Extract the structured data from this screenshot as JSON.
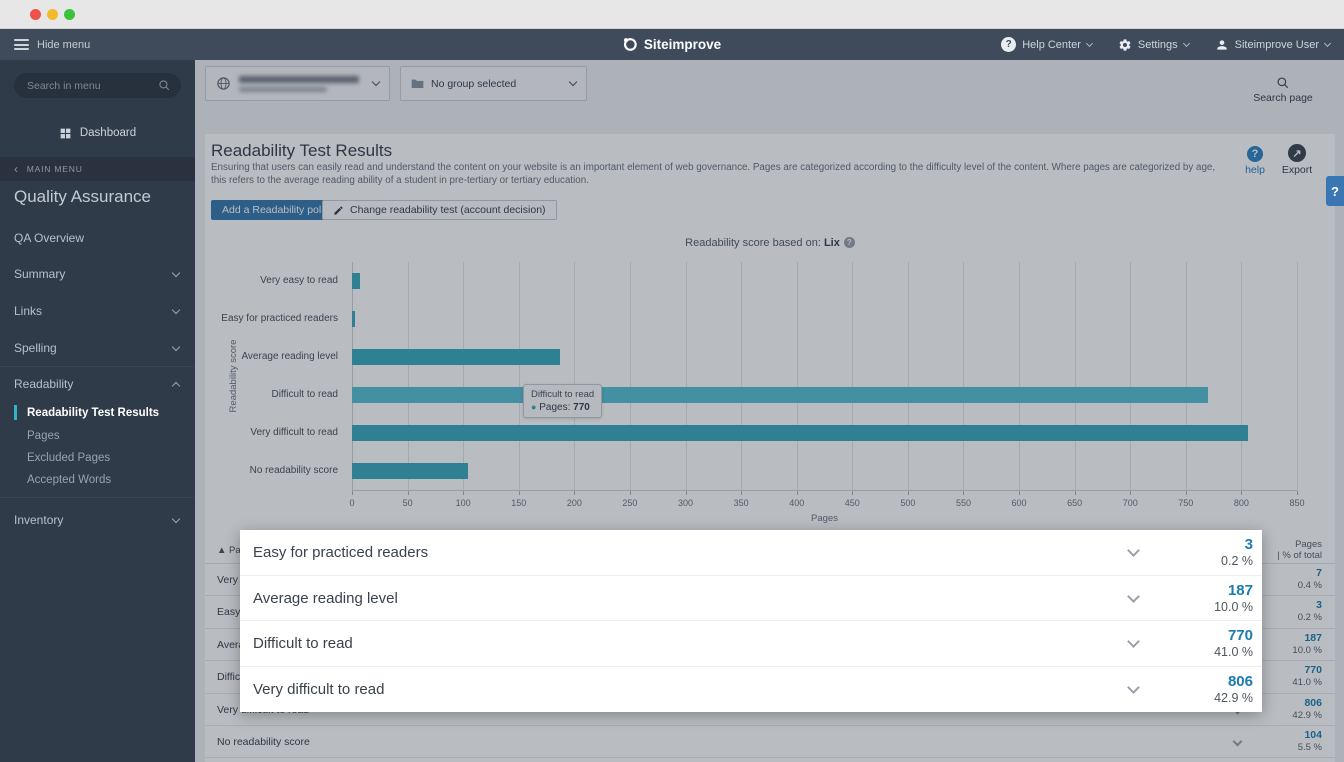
{
  "navbar": {
    "hide_menu": "Hide menu",
    "brand": "Siteimprove",
    "help_center": "Help Center",
    "settings": "Settings",
    "user": "Siteimprove User"
  },
  "sidebar": {
    "search_placeholder": "Search in menu",
    "dashboard": "Dashboard",
    "main_menu": "MAIN MENU",
    "section_title": "Quality Assurance",
    "items": [
      {
        "label": "QA Overview",
        "chevron": null
      },
      {
        "label": "Summary",
        "chevron": "down"
      },
      {
        "label": "Links",
        "chevron": "down"
      },
      {
        "label": "Spelling",
        "chevron": "down"
      },
      {
        "label": "Readability",
        "chevron": "up"
      }
    ],
    "readability_children": [
      "Readability Test Results",
      "Pages",
      "Excluded Pages",
      "Accepted Words"
    ],
    "active_child": "Readability Test Results",
    "inventory": "Inventory"
  },
  "filters": {
    "group_selector": "No group selected",
    "search_page": "Search page"
  },
  "page": {
    "title": "Readability Test Results",
    "description": "Ensuring that users can easily read and understand the content on your website is an important element of web governance. Pages are categorized according to the difficulty level of the content. Where pages are categorized by age, this refers to the average reading ability of a student in pre-tertiary or tertiary education.",
    "add_policy_button": "Add a Readability policy",
    "change_test_button": "Change readability test (account decision)",
    "help_label": "help",
    "export_label": "Export",
    "floating_help": "?"
  },
  "chart_data": {
    "type": "bar",
    "orientation": "horizontal",
    "title": "Readability score based on: Lix",
    "title_prefix": "Readability score based on:",
    "metric": "Lix",
    "categories": [
      "Very easy to read",
      "Easy for practiced readers",
      "Average reading level",
      "Difficult to read",
      "Very difficult to read",
      "No readability score"
    ],
    "values": [
      7,
      3,
      187,
      770,
      806,
      104
    ],
    "xlabel": "Pages",
    "ylabel": "Readability score",
    "xlim": [
      0,
      850
    ],
    "xticks": [
      0,
      50,
      100,
      150,
      200,
      250,
      300,
      350,
      400,
      450,
      500,
      550,
      600,
      650,
      700,
      750,
      800,
      850
    ],
    "grid": true,
    "legend": false,
    "bar_color": "#3aa9bd",
    "bar_hover_color": "#55c0d2",
    "hovered_category": "Difficult to read",
    "tooltip": {
      "title": "Difficult to read",
      "series_label": "Pages:",
      "value": "770"
    }
  },
  "table": {
    "sort_indicator": "▲",
    "header_left": "Page readability level",
    "header_right_line1": "Pages",
    "header_right_line2": "| % of total",
    "rows": [
      {
        "label": "Very easy to read",
        "pages": "7",
        "percent": "0.4 %"
      },
      {
        "label": "Easy for practiced readers",
        "pages": "3",
        "percent": "0.2 %"
      },
      {
        "label": "Average reading level",
        "pages": "187",
        "percent": "10.0 %"
      },
      {
        "label": "Difficult to read",
        "pages": "770",
        "percent": "41.0 %"
      },
      {
        "label": "Very difficult to read",
        "pages": "806",
        "percent": "42.9 %"
      },
      {
        "label": "No readability score",
        "pages": "104",
        "percent": "5.5 %"
      }
    ]
  },
  "modal": {
    "rows": [
      {
        "label": "Easy for practiced readers",
        "pages": "3",
        "percent": "0.2 %"
      },
      {
        "label": "Average reading level",
        "pages": "187",
        "percent": "10.0 %"
      },
      {
        "label": "Difficult to read",
        "pages": "770",
        "percent": "41.0 %"
      },
      {
        "label": "Very difficult to read",
        "pages": "806",
        "percent": "42.9 %"
      }
    ]
  },
  "icons": {
    "bullet": "●",
    "export_arrow": "↗",
    "back": "‹",
    "question": "?"
  },
  "colors": {
    "navbar": "#3f4b5b",
    "sidebar": "#303b49",
    "accent_teal": "#2fb5c7",
    "value_blue": "#1a7cb2",
    "primary_button": "#3579ae"
  }
}
